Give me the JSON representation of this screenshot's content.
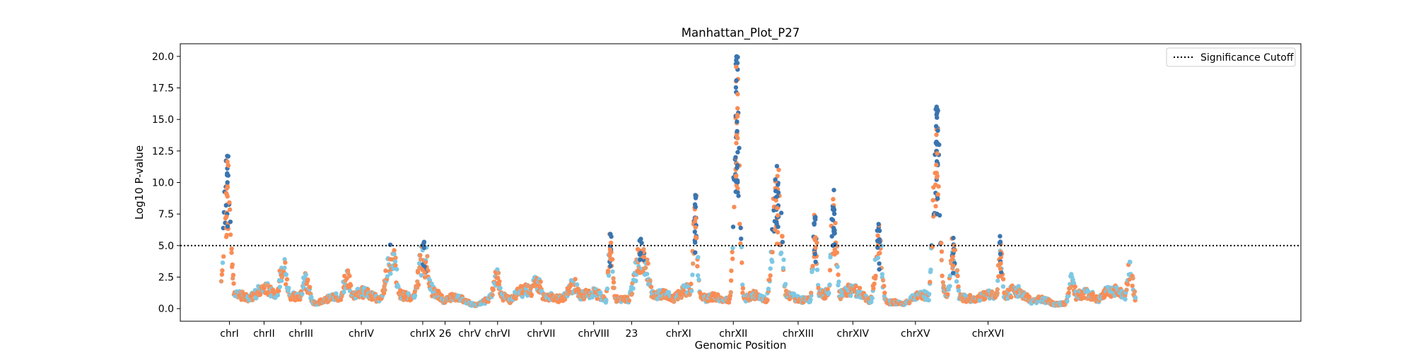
{
  "chart_data": {
    "type": "scatter",
    "title": "Manhattan_Plot_P27",
    "xlabel": "Genomic Position",
    "ylabel": "Log10 P-value",
    "ylim": [
      -1.0,
      21.0
    ],
    "xlim": [
      -3.0,
      1000.0
    ],
    "yticks": [
      "0.0",
      "2.5",
      "5.0",
      "7.5",
      "10.0",
      "12.5",
      "15.0",
      "17.5",
      "20.0"
    ],
    "significance_cutoff": 5.0,
    "legend": {
      "position": "top-right",
      "entries": [
        "Significance Cutoff"
      ]
    },
    "grid": false,
    "colors": {
      "sig": "#3a75b0",
      "sky": "#7ec8e3",
      "orange": "#fa8c55",
      "tan": "#e89a6a",
      "line": "#000000"
    },
    "chromosomes": [
      {
        "label": "chrI",
        "x": 41
      },
      {
        "label": "chrII",
        "x": 72
      },
      {
        "label": "chrIII",
        "x": 105
      },
      {
        "label": "chrIV",
        "x": 159
      },
      {
        "label": "chrIX",
        "x": 214
      },
      {
        "label": "26",
        "x": 234
      },
      {
        "label": "chrV",
        "x": 256
      },
      {
        "label": "chrVI",
        "x": 281
      },
      {
        "label": "chrVII",
        "x": 320
      },
      {
        "label": "chrVIII",
        "x": 367
      },
      {
        "label": "23",
        "x": 401
      },
      {
        "label": "chrXI",
        "x": 443
      },
      {
        "label": "chrXII",
        "x": 492
      },
      {
        "label": "chrXIII",
        "x": 550
      },
      {
        "label": "chrXIV",
        "x": 599
      },
      {
        "label": "chrXV",
        "x": 655
      },
      {
        "label": "chrXVI",
        "x": 720
      }
    ],
    "peaks": [
      {
        "x": 39,
        "width": 3,
        "height": 12.1
      },
      {
        "x": 75,
        "width": 2,
        "height": 0.8
      },
      {
        "x": 89,
        "width": 4,
        "height": 3.8
      },
      {
        "x": 109,
        "width": 4,
        "height": 2.6
      },
      {
        "x": 146,
        "width": 4,
        "height": 2.9
      },
      {
        "x": 186,
        "width": 5,
        "height": 4.9
      },
      {
        "x": 215,
        "width": 5,
        "height": 5.2
      },
      {
        "x": 280,
        "width": 3,
        "height": 3.2
      },
      {
        "x": 316,
        "width": 5,
        "height": 2.5
      },
      {
        "x": 349,
        "width": 6,
        "height": 2.2
      },
      {
        "x": 382,
        "width": 2,
        "height": 5.9
      },
      {
        "x": 410,
        "width": 6,
        "height": 5.2
      },
      {
        "x": 458,
        "width": 2,
        "height": 9.0
      },
      {
        "x": 495,
        "width": 2.5,
        "height": 20.0
      },
      {
        "x": 531,
        "width": 4,
        "height": 11.3
      },
      {
        "x": 565,
        "width": 2,
        "height": 7.2
      },
      {
        "x": 582,
        "width": 2.5,
        "height": 9.4
      },
      {
        "x": 622,
        "width": 3,
        "height": 6.7
      },
      {
        "x": 674,
        "width": 3,
        "height": 16.0
      },
      {
        "x": 689,
        "width": 3,
        "height": 5.6
      },
      {
        "x": 731,
        "width": 2,
        "height": 5.3
      },
      {
        "x": 795,
        "width": 3,
        "height": 2.6
      },
      {
        "x": 847,
        "width": 3,
        "height": 3.6
      }
    ],
    "points_count": 2200
  }
}
